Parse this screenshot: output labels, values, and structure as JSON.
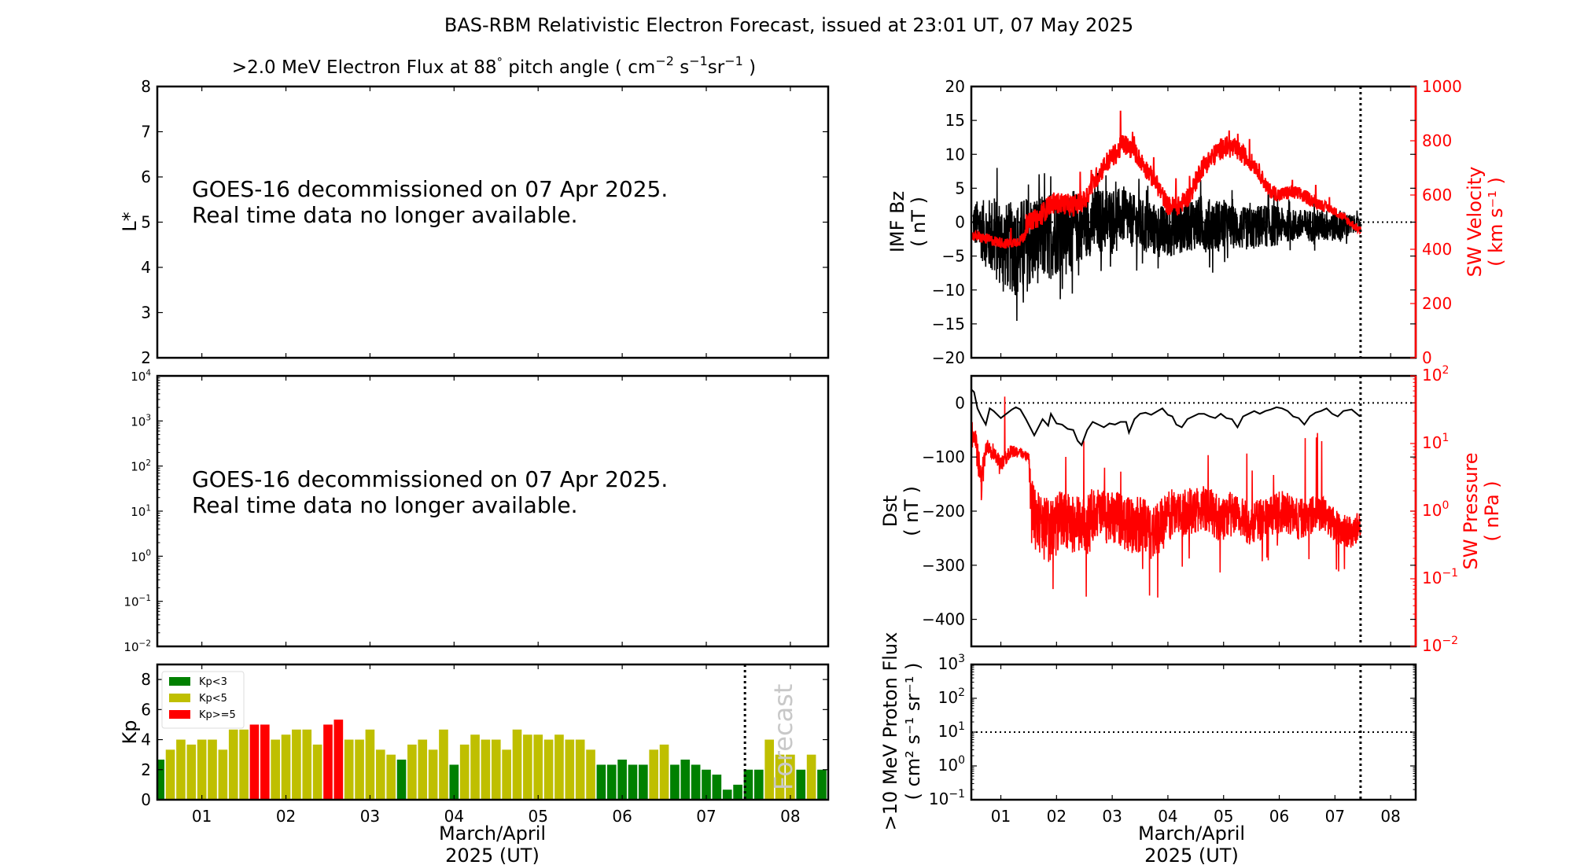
{
  "figure": {
    "suptitle": "BAS-RBM Relativistic Electron Forecast, issued at 23:01 UT, 07 May 2025"
  },
  "x_axis": {
    "tick_labels": [
      "01",
      "02",
      "03",
      "04",
      "05",
      "06",
      "07",
      "08"
    ],
    "xlabel_line1": "March/April",
    "xlabel_line2": "2025 (UT)",
    "range_days": [
      0.47,
      8.45
    ],
    "now_marker_day": 7.46
  },
  "chart_data": [
    {
      "id": "electron-flux-lstar",
      "type": "heatmap",
      "title_main": ">2.0 MeV Electron Flux at 88",
      "title_deg": "°",
      "title_mid": " pitch angle ( cm",
      "title_sup1": "−2",
      "title_s": " s",
      "title_sup2": "−1",
      "title_sr": "sr",
      "title_sup3": "−1",
      "title_end": " )",
      "ylabel": "L*",
      "ylim": [
        2,
        8
      ],
      "yticks": [
        "2",
        "3",
        "4",
        "5",
        "6",
        "7",
        "8"
      ],
      "annotation_line1": "GOES-16 decommissioned on 07 Apr 2025.",
      "annotation_line2": "Real time data no longer available."
    },
    {
      "id": "electron-flux-colorbar-log",
      "type": "line",
      "ylim_log10": [
        -2,
        4
      ],
      "yticks_exp": [
        "−2",
        "−1",
        "0",
        "1",
        "2",
        "3",
        "4"
      ],
      "annotation_line1": "GOES-16 decommissioned on 07 Apr 2025.",
      "annotation_line2": "Real time data no longer available."
    },
    {
      "id": "kp-index",
      "type": "bar",
      "ylabel": "Kp",
      "ylim": [
        0,
        9
      ],
      "yticks": [
        "0",
        "2",
        "4",
        "6",
        "8"
      ],
      "legend": [
        {
          "label": "Kp<3",
          "color": "#008000"
        },
        {
          "label": "Kp<5",
          "color": "#bfbf00"
        },
        {
          "label": "Kp>=5",
          "color": "#ff0000"
        }
      ],
      "legend_position": "top-left",
      "forecast_label": "Forecast",
      "bar_start_day": 0.5,
      "bar_width_days": 0.125,
      "values": [
        2.67,
        3.33,
        4.0,
        3.67,
        4.0,
        4.0,
        3.33,
        4.67,
        4.67,
        5.0,
        5.0,
        4.0,
        4.33,
        4.67,
        4.67,
        3.67,
        5.0,
        5.33,
        4.0,
        4.0,
        4.67,
        3.33,
        3.0,
        2.67,
        3.67,
        4.0,
        3.33,
        4.67,
        2.33,
        3.67,
        4.33,
        4.0,
        4.0,
        3.33,
        4.67,
        4.33,
        4.33,
        4.0,
        4.33,
        4.0,
        4.0,
        3.33,
        2.33,
        2.33,
        2.67,
        2.33,
        2.33,
        3.33,
        3.67,
        2.33,
        2.67,
        2.33,
        2.0,
        1.67,
        0.67,
        1.0,
        2.0,
        2.0,
        4.0,
        3.0,
        3.0,
        2.0,
        3.0,
        2.0,
        2.0
      ],
      "forecast_start_index": 57
    },
    {
      "id": "imf-bz-sw-velocity",
      "type": "line",
      "ylabel_left_line1": "IMF Bz",
      "ylabel_left_line2": "( nT )",
      "ylim_left": [
        -20,
        20
      ],
      "yticks_left": [
        "−20",
        "−15",
        "−10",
        "−5",
        "0",
        "5",
        "10",
        "15",
        "20"
      ],
      "ylabel_right_line1": "SW Velocity",
      "ylabel_right_line2": "( km s⁻¹ )",
      "ylim_right": [
        0,
        1000
      ],
      "yticks_right": [
        "0",
        "200",
        "400",
        "600",
        "800",
        "1000"
      ],
      "right_color": "#ff0000",
      "series": [
        {
          "name": "IMF Bz",
          "color": "#000000",
          "x_days": [
            0.5,
            0.7,
            0.9,
            1.1,
            1.3,
            1.5,
            1.7,
            1.9,
            2.1,
            2.3,
            2.5,
            2.7,
            2.9,
            3.1,
            3.3,
            3.5,
            3.7,
            3.9,
            4.1,
            4.3,
            4.5,
            4.7,
            4.9,
            5.1,
            5.3,
            5.5,
            5.7,
            5.9,
            6.1,
            6.3,
            6.5,
            6.7,
            6.9,
            7.1,
            7.3,
            7.45
          ],
          "center": [
            0,
            -1.5,
            -2.5,
            -3.5,
            -4,
            -3,
            -2.5,
            -2,
            -1.5,
            -1,
            -0.5,
            0,
            0.5,
            1,
            0.5,
            -0.5,
            -1,
            -1.5,
            -1,
            -0.5,
            0,
            -0.5,
            -0.5,
            -0.5,
            -1,
            -1,
            -0.5,
            -0.5,
            -0.5,
            -0.5,
            -0.5,
            -0.5,
            -0.5,
            -0.5,
            -0.5,
            0
          ],
          "spread": [
            4,
            6,
            8,
            8,
            9,
            9,
            8,
            8,
            7,
            7,
            6,
            6,
            6,
            5,
            5,
            5,
            5,
            5,
            5,
            5,
            5,
            5,
            5,
            4,
            4,
            4,
            4,
            4,
            3,
            3,
            3,
            3,
            3,
            3,
            2,
            1
          ]
        },
        {
          "name": "SW Velocity",
          "color": "#ff0000",
          "x_days": [
            0.5,
            0.7,
            0.9,
            1.1,
            1.3,
            1.4,
            1.5,
            1.7,
            1.9,
            2.1,
            2.3,
            2.5,
            2.7,
            2.9,
            3.1,
            3.2,
            3.4,
            3.6,
            3.8,
            4.0,
            4.2,
            4.4,
            4.6,
            4.8,
            5.0,
            5.2,
            5.4,
            5.6,
            5.8,
            6.0,
            6.2,
            6.4,
            6.6,
            6.8,
            7.0,
            7.2,
            7.45
          ],
          "center": [
            450,
            440,
            430,
            420,
            430,
            440,
            500,
            520,
            570,
            570,
            560,
            580,
            660,
            720,
            760,
            790,
            760,
            700,
            640,
            560,
            560,
            600,
            700,
            740,
            780,
            770,
            740,
            700,
            620,
            600,
            610,
            600,
            580,
            560,
            540,
            510,
            470
          ],
          "spread": [
            20,
            25,
            25,
            25,
            25,
            25,
            40,
            50,
            50,
            50,
            50,
            50,
            50,
            50,
            50,
            50,
            45,
            45,
            45,
            45,
            45,
            45,
            50,
            50,
            50,
            50,
            45,
            40,
            35,
            35,
            35,
            35,
            30,
            25,
            20,
            20,
            20
          ]
        }
      ],
      "zero_line": 0
    },
    {
      "id": "dst-sw-pressure",
      "type": "line",
      "ylabel_left_line1": "Dst",
      "ylabel_left_line2": "( nT )",
      "ylim_left": [
        -450,
        50
      ],
      "yticks_left": [
        "−400",
        "−300",
        "−200",
        "−100",
        "0"
      ],
      "ylabel_right_line1": "SW Pressure",
      "ylabel_right_line2": "( nPa )",
      "ylim_right_log10": [
        -2,
        2
      ],
      "yticks_right_exp": [
        "−2",
        "−1",
        "0",
        "1",
        "2"
      ],
      "right_color": "#ff0000",
      "series": [
        {
          "name": "Dst",
          "color": "#000000",
          "x_days": [
            0.47,
            0.52,
            0.58,
            0.65,
            0.73,
            0.8,
            0.87,
            1.0,
            1.1,
            1.2,
            1.27,
            1.35,
            1.45,
            1.55,
            1.6,
            1.7,
            1.75,
            1.85,
            1.9,
            2.0,
            2.1,
            2.2,
            2.3,
            2.38,
            2.45,
            2.55,
            2.65,
            2.75,
            2.85,
            2.95,
            3.05,
            3.15,
            3.2,
            3.25,
            3.3,
            3.4,
            3.5,
            3.6,
            3.7,
            3.8,
            3.9,
            4.0,
            4.08,
            4.15,
            4.25,
            4.35,
            4.45,
            4.55,
            4.65,
            4.75,
            4.85,
            4.95,
            5.05,
            5.15,
            5.25,
            5.35,
            5.45,
            5.55,
            5.65,
            5.75,
            5.85,
            5.95,
            6.05,
            6.15,
            6.25,
            6.35,
            6.45,
            6.55,
            6.65,
            6.75,
            6.85,
            6.95,
            7.05,
            7.15,
            7.3,
            7.45
          ],
          "values": [
            25,
            20,
            -10,
            -25,
            -40,
            -10,
            -15,
            -28,
            -20,
            -12,
            -8,
            -12,
            -30,
            -50,
            -60,
            -40,
            -30,
            -42,
            -20,
            -38,
            -40,
            -48,
            -50,
            -70,
            -78,
            -50,
            -35,
            -40,
            -45,
            -38,
            -40,
            -35,
            -35,
            -35,
            -55,
            -30,
            -20,
            -18,
            -22,
            -16,
            -10,
            -22,
            -25,
            -40,
            -45,
            -30,
            -25,
            -20,
            -20,
            -25,
            -28,
            -20,
            -28,
            -30,
            -45,
            -25,
            -20,
            -15,
            -20,
            -15,
            -12,
            -8,
            -10,
            -15,
            -25,
            -28,
            -40,
            -25,
            -18,
            -15,
            -10,
            -20,
            -25,
            -15,
            -12,
            -25
          ]
        },
        {
          "name": "SW Pressure",
          "color": "#ff0000",
          "x_days": [
            0.47,
            0.55,
            0.65,
            0.75,
            0.85,
            1.0,
            1.2,
            1.4,
            1.5,
            1.55,
            1.7,
            1.9,
            2.1,
            2.3,
            2.5,
            2.7,
            2.9,
            3.1,
            3.3,
            3.5,
            3.7,
            3.9,
            4.1,
            4.3,
            4.5,
            4.7,
            4.9,
            5.1,
            5.3,
            5.5,
            5.7,
            5.9,
            6.1,
            6.3,
            6.5,
            6.7,
            6.9,
            7.1,
            7.3,
            7.45
          ],
          "center_log10": [
            1.3,
            1.0,
            0.4,
            1.0,
            0.9,
            0.7,
            0.9,
            0.85,
            0.8,
            0.0,
            -0.2,
            -0.3,
            -0.1,
            -0.2,
            -0.2,
            0.0,
            -0.1,
            -0.1,
            -0.2,
            -0.2,
            -0.3,
            -0.2,
            0.0,
            0.0,
            0.0,
            0.05,
            -0.1,
            -0.05,
            -0.1,
            -0.2,
            -0.1,
            -0.05,
            0.0,
            -0.1,
            -0.1,
            0.0,
            -0.1,
            -0.3,
            -0.3,
            -0.2
          ],
          "spread_log10": [
            0.1,
            0.3,
            0.4,
            0.2,
            0.2,
            0.15,
            0.15,
            0.1,
            0.1,
            0.7,
            0.7,
            0.7,
            0.6,
            0.6,
            0.6,
            0.55,
            0.55,
            0.55,
            0.6,
            0.6,
            0.6,
            0.6,
            0.5,
            0.5,
            0.5,
            0.5,
            0.5,
            0.5,
            0.45,
            0.45,
            0.45,
            0.45,
            0.45,
            0.45,
            0.4,
            0.4,
            0.4,
            0.35,
            0.35,
            0.3
          ]
        }
      ],
      "zero_line": 0
    },
    {
      "id": "proton-flux",
      "type": "line",
      "ylabel_line1": ">10 MeV Proton Flux",
      "ylabel_line2": "( cm² s⁻¹ sr⁻¹ )",
      "ylim_log10": [
        -1,
        3
      ],
      "yticks_exp": [
        "−1",
        "0",
        "1",
        "2",
        "3"
      ],
      "threshold_value": 10,
      "series": []
    }
  ]
}
